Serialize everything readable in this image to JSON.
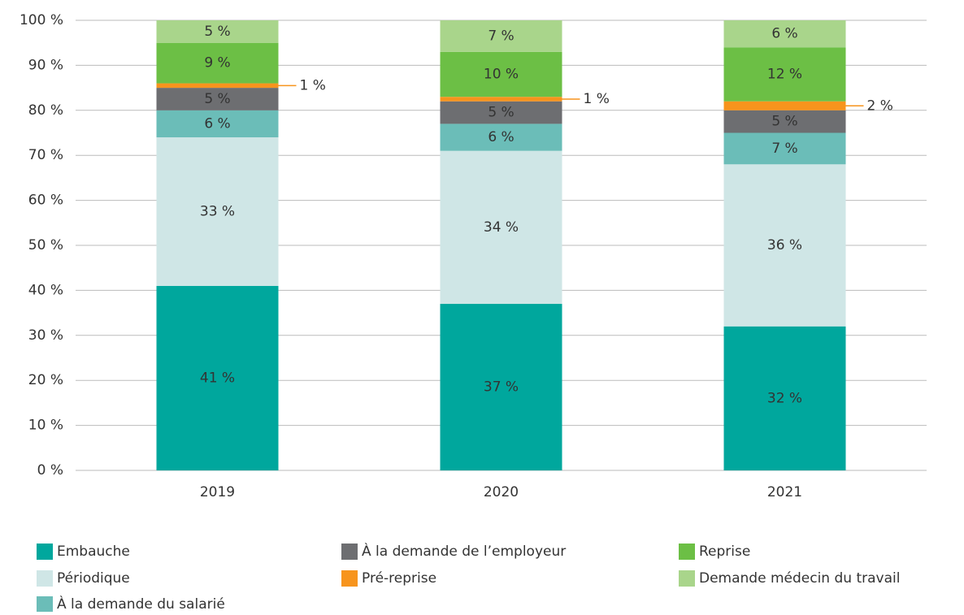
{
  "chart_data": {
    "type": "stacked_bar",
    "categories": [
      "2019",
      "2020",
      "2021"
    ],
    "series": [
      {
        "name": "Embauche",
        "color": "#00a79d",
        "values": [
          41,
          37,
          32
        ],
        "value_labels": [
          "41 %",
          "37 %",
          "32 %"
        ]
      },
      {
        "name": "Périodique",
        "color": "#cfe6e6",
        "values": [
          33,
          34,
          36
        ],
        "value_labels": [
          "33 %",
          "34 %",
          "36 %"
        ]
      },
      {
        "name": "À la demande du salarié",
        "color": "#6bbdb8",
        "values": [
          6,
          6,
          7
        ],
        "value_labels": [
          "6 %",
          "6 %",
          "7 %"
        ]
      },
      {
        "name": "À la demande de l’employeur",
        "color": "#6d6e71",
        "values": [
          5,
          5,
          5
        ],
        "value_labels": [
          "5 %",
          "5 %",
          "5 %"
        ]
      },
      {
        "name": "Pré-reprise",
        "color": "#f7941d",
        "values": [
          1,
          1,
          2
        ],
        "value_labels": [
          "1 %",
          "1 %",
          "2 %"
        ]
      },
      {
        "name": "Reprise",
        "color": "#6cbf45",
        "values": [
          9,
          10,
          12
        ],
        "value_labels": [
          "9 %",
          "10 %",
          "12 %"
        ]
      },
      {
        "name": "Demande médecin du travail",
        "color": "#a9d58b",
        "values": [
          5,
          7,
          6
        ],
        "value_labels": [
          "5 %",
          "7 %",
          "6 %"
        ]
      }
    ],
    "ylim": [
      0,
      100
    ],
    "yticks": [
      {
        "value": 0,
        "label": "0 %"
      },
      {
        "value": 10,
        "label": "10 %"
      },
      {
        "value": 20,
        "label": "20 %"
      },
      {
        "value": 30,
        "label": "30 %"
      },
      {
        "value": 40,
        "label": "40 %"
      },
      {
        "value": 50,
        "label": "50 %"
      },
      {
        "value": 60,
        "label": "60 %"
      },
      {
        "value": 70,
        "label": "70 %"
      },
      {
        "value": 80,
        "label": "80 %"
      },
      {
        "value": 90,
        "label": "90 %"
      },
      {
        "value": 100,
        "label": "100 %"
      }
    ],
    "grid": true,
    "legend": "bottom"
  }
}
